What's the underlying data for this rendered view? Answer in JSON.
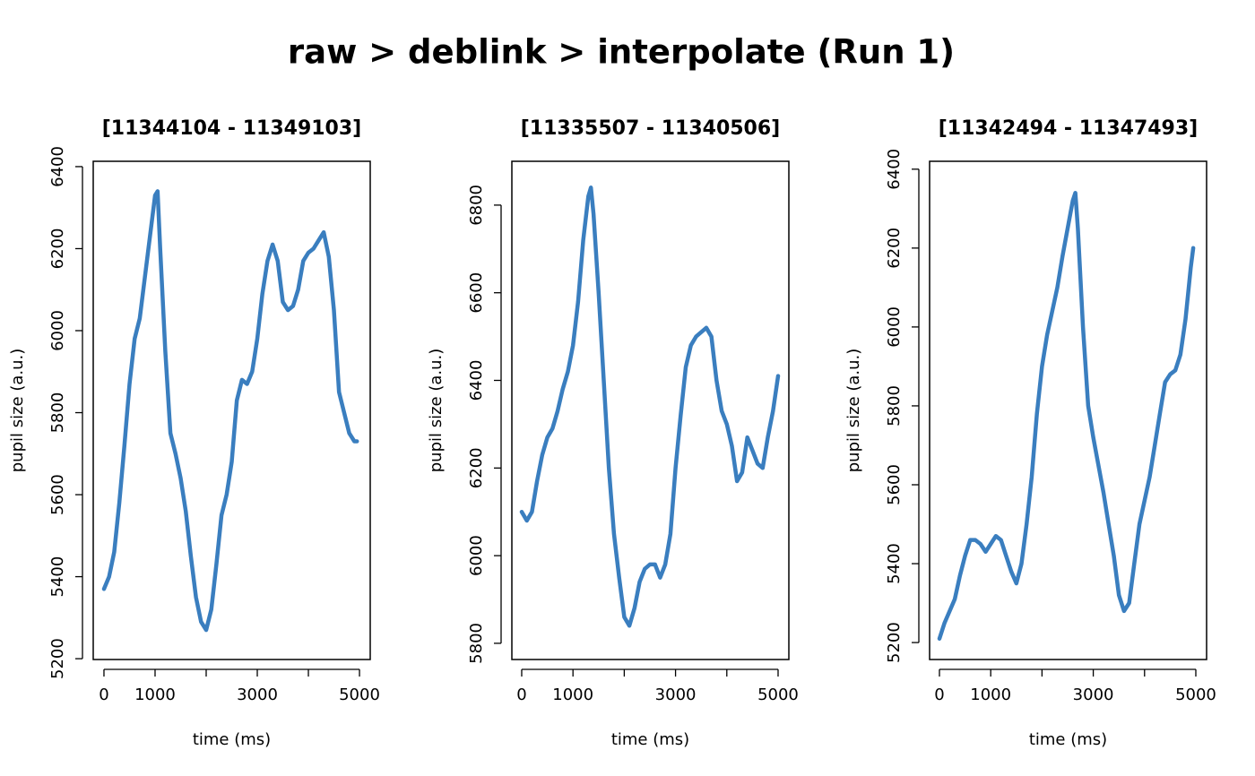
{
  "title": "raw > deblink > interpolate (Run 1)",
  "chart_data": [
    {
      "type": "line",
      "title": "[11344104 - 11349103]",
      "xlabel": "time (ms)",
      "ylabel": "pupil size (a.u.)",
      "color": "#3a7ebf",
      "xlim": [
        -210,
        5210
      ],
      "ylim": [
        5198,
        6413
      ],
      "xticks": [
        0,
        1000,
        {
          "value": 2000,
          "label": null
        },
        3000,
        {
          "value": 4000,
          "label": null
        },
        5000
      ],
      "yticks": [
        5200,
        5400,
        5600,
        5800,
        6000,
        6200,
        6400
      ],
      "x": [
        0,
        100,
        200,
        300,
        400,
        500,
        600,
        700,
        800,
        900,
        1000,
        1050,
        1100,
        1200,
        1300,
        1400,
        1500,
        1600,
        1700,
        1800,
        1900,
        2000,
        2100,
        2200,
        2300,
        2400,
        2500,
        2600,
        2700,
        2800,
        2900,
        3000,
        3100,
        3200,
        3300,
        3400,
        3500,
        3600,
        3700,
        3800,
        3900,
        4000,
        4100,
        4200,
        4300,
        4400,
        4500,
        4600,
        4700,
        4800,
        4900,
        4950
      ],
      "values": [
        5370,
        5400,
        5460,
        5580,
        5720,
        5870,
        5980,
        6030,
        6130,
        6230,
        6330,
        6340,
        6200,
        5950,
        5750,
        5700,
        5640,
        5560,
        5450,
        5350,
        5290,
        5270,
        5320,
        5430,
        5550,
        5600,
        5680,
        5830,
        5880,
        5870,
        5900,
        5980,
        6090,
        6170,
        6210,
        6170,
        6070,
        6050,
        6060,
        6100,
        6170,
        6190,
        6200,
        6220,
        6240,
        6180,
        6050,
        5850,
        5800,
        5750,
        5730,
        5730
      ]
    },
    {
      "type": "line",
      "title": "[11335507 - 11340506]",
      "xlabel": "time (ms)",
      "ylabel": "pupil size (a.u.)",
      "color": "#3a7ebf",
      "xlim": [
        -192,
        5210
      ],
      "ylim": [
        5763,
        6900
      ],
      "xticks": [
        0,
        1000,
        {
          "value": 2000,
          "label": null
        },
        3000,
        {
          "value": 4000,
          "label": null
        },
        5000
      ],
      "yticks": [
        5800,
        6000,
        6200,
        6400,
        6600,
        6800
      ],
      "x": [
        0,
        100,
        200,
        300,
        400,
        500,
        600,
        700,
        800,
        900,
        1000,
        1100,
        1200,
        1300,
        1350,
        1400,
        1500,
        1600,
        1700,
        1800,
        1900,
        2000,
        2100,
        2200,
        2300,
        2400,
        2500,
        2600,
        2700,
        2800,
        2900,
        3000,
        3100,
        3200,
        3300,
        3400,
        3500,
        3600,
        3700,
        3800,
        3900,
        4000,
        4100,
        4200,
        4300,
        4400,
        4500,
        4600,
        4700,
        4800,
        4900,
        5000
      ],
      "values": [
        6100,
        6080,
        6100,
        6170,
        6230,
        6270,
        6290,
        6330,
        6380,
        6420,
        6480,
        6580,
        6720,
        6820,
        6840,
        6780,
        6600,
        6400,
        6200,
        6050,
        5950,
        5860,
        5840,
        5880,
        5940,
        5970,
        5980,
        5980,
        5950,
        5980,
        6050,
        6200,
        6320,
        6430,
        6480,
        6500,
        6510,
        6520,
        6500,
        6400,
        6330,
        6300,
        6250,
        6170,
        6190,
        6270,
        6240,
        6210,
        6200,
        6270,
        6330,
        6410
      ]
    },
    {
      "type": "line",
      "title": "[11342494 - 11347493]",
      "xlabel": "time (ms)",
      "ylabel": "pupil size (a.u.)",
      "color": "#3a7ebf",
      "xlim": [
        -192,
        5210
      ],
      "ylim": [
        5157,
        6420
      ],
      "xticks": [
        0,
        1000,
        {
          "value": 2000,
          "label": null
        },
        3000,
        {
          "value": 4000,
          "label": null
        },
        5000
      ],
      "yticks": [
        5200,
        5400,
        5600,
        5800,
        6000,
        6200,
        6400
      ],
      "x": [
        0,
        100,
        200,
        300,
        400,
        500,
        600,
        700,
        800,
        900,
        1000,
        1100,
        1200,
        1300,
        1400,
        1500,
        1600,
        1700,
        1800,
        1900,
        2000,
        2100,
        2200,
        2300,
        2400,
        2500,
        2600,
        2650,
        2700,
        2800,
        2900,
        3000,
        3100,
        3200,
        3300,
        3400,
        3500,
        3600,
        3700,
        3800,
        3900,
        4000,
        4100,
        4200,
        4300,
        4400,
        4500,
        4600,
        4700,
        4800,
        4900,
        4950
      ],
      "values": [
        5210,
        5250,
        5280,
        5310,
        5370,
        5420,
        5460,
        5460,
        5450,
        5430,
        5450,
        5470,
        5460,
        5420,
        5380,
        5350,
        5400,
        5500,
        5620,
        5780,
        5900,
        5980,
        6040,
        6100,
        6180,
        6250,
        6320,
        6340,
        6250,
        6000,
        5800,
        5720,
        5650,
        5580,
        5500,
        5420,
        5320,
        5280,
        5300,
        5400,
        5500,
        5560,
        5620,
        5700,
        5780,
        5860,
        5880,
        5890,
        5930,
        6020,
        6150,
        6200
      ]
    }
  ]
}
